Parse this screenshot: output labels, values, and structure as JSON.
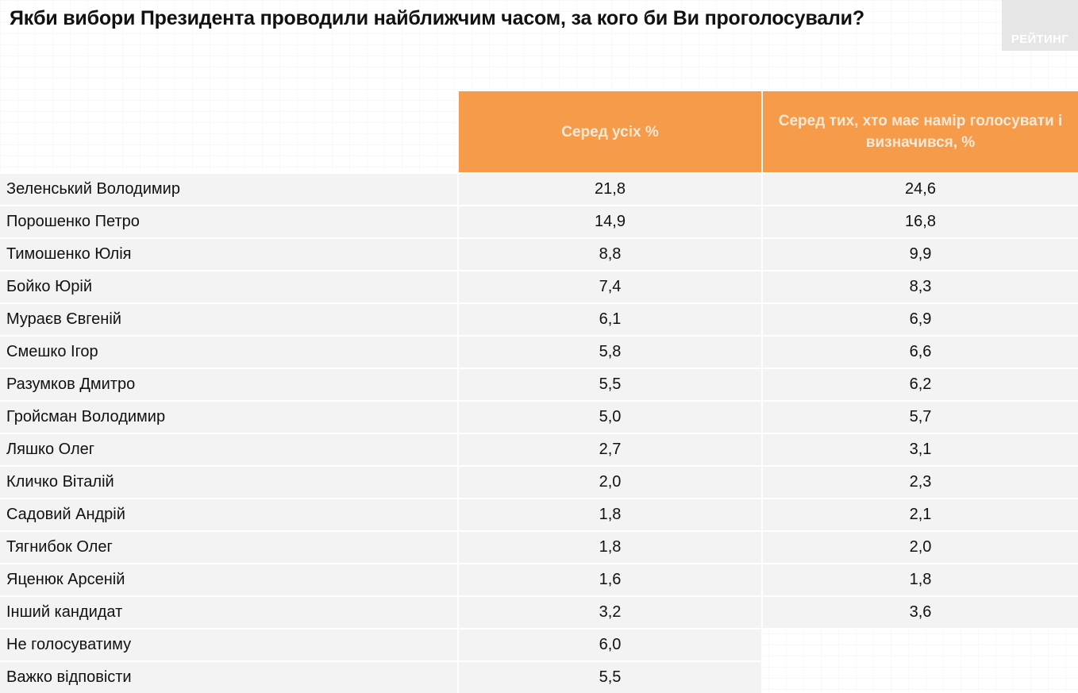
{
  "title": "Якби вибори Президента проводили найближчим часом, за кого би Ви проголосували?",
  "logo_text": "РЕЙТИНГ",
  "colors": {
    "header_orange": "#f59b4a",
    "row_gray": "#f2f2f2"
  },
  "chart_data": {
    "type": "table",
    "title": "Якби вибори Президента проводили найближчим часом, за кого би Ви проголосували?",
    "columns": [
      "",
      "Серед усіх %",
      "Серед тих, хто має намір голосувати і визначився, %"
    ],
    "rows": [
      {
        "name": "Зеленський Володимир",
        "all": "21,8",
        "decided": "24,6"
      },
      {
        "name": "Порошенко Петро",
        "all": "14,9",
        "decided": "16,8"
      },
      {
        "name": "Тимошенко Юлія",
        "all": "8,8",
        "decided": "9,9"
      },
      {
        "name": "Бойко Юрій",
        "all": "7,4",
        "decided": "8,3"
      },
      {
        "name": "Мураєв Євгеній",
        "all": "6,1",
        "decided": "6,9"
      },
      {
        "name": "Смешко Ігор",
        "all": "5,8",
        "decided": "6,6"
      },
      {
        "name": "Разумков Дмитро",
        "all": "5,5",
        "decided": "6,2"
      },
      {
        "name": "Гройсман Володимир",
        "all": "5,0",
        "decided": "5,7"
      },
      {
        "name": "Ляшко Олег",
        "all": "2,7",
        "decided": "3,1"
      },
      {
        "name": "Кличко Віталій",
        "all": "2,0",
        "decided": "2,3"
      },
      {
        "name": "Садовий Андрій",
        "all": "1,8",
        "decided": "2,1"
      },
      {
        "name": "Тягнибок Олег",
        "all": "1,8",
        "decided": "2,0"
      },
      {
        "name": "Яценюк Арсеній",
        "all": "1,6",
        "decided": "1,8"
      },
      {
        "name": "Інший кандидат",
        "all": "3,2",
        "decided": "3,6"
      },
      {
        "name": "Не голосуватиму",
        "all": "6,0",
        "decided": ""
      },
      {
        "name": "Важко відповісти",
        "all": "5,5",
        "decided": ""
      }
    ]
  }
}
